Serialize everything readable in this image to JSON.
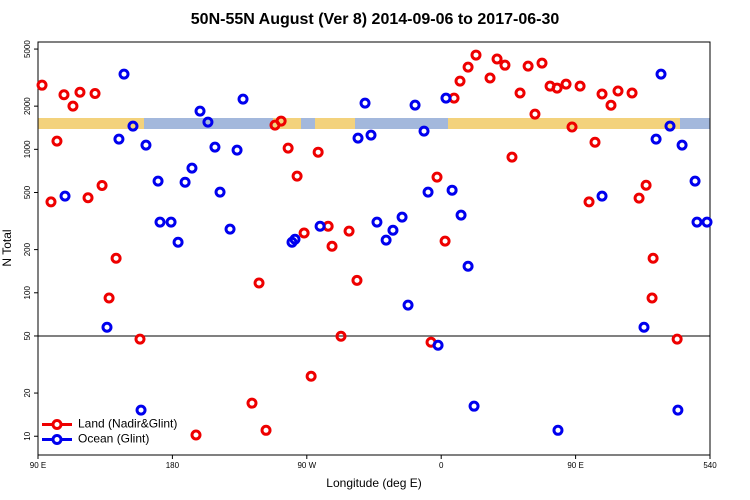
{
  "chart_data": {
    "type": "scatter",
    "title": "50N-55N August (Ver 8)   2014-09-06 to 2017-06-30",
    "x_label": "Longitude (deg E)",
    "y_label": "N Total",
    "ylog": true,
    "xlim": [
      90,
      540
    ],
    "ylim": [
      7.4,
      5600
    ],
    "xticks": [
      {
        "value": 90,
        "label": "90 E"
      },
      180,
      {
        "value": 270,
        "label": "90 W"
      },
      {
        "value": 360,
        "label": "0"
      },
      {
        "value": 450,
        "label": "90 E"
      },
      540
    ],
    "yticks": [
      10,
      20,
      50,
      100,
      200,
      500,
      1000,
      2000,
      5000
    ],
    "hline": 50,
    "legend": "bottomleft",
    "series": [
      {
        "name": "Land (Nadir&Glint)",
        "color": "#ee0000",
        "x": [
          92.7,
          98.7,
          102.7,
          107.4,
          113.4,
          118.1,
          123.5,
          128.2,
          132.9,
          137.6,
          142.3,
          158.3,
          195.8,
          233.3,
          238.0,
          242.7,
          248.7,
          252.8,
          257.5,
          263.5,
          268.2,
          272.9,
          277.6,
          284.3,
          286.9,
          292.9,
          298.3,
          303.6,
          353.2,
          357.2,
          362.6,
          368.6,
          372.6,
          378.0,
          383.3,
          392.7,
          397.4,
          402.7,
          407.4,
          412.8,
          418.2,
          422.8,
          427.5,
          432.9,
          437.6,
          443.6,
          447.6,
          453.0,
          459.0,
          463.0,
          467.7,
          473.7,
          478.4,
          487.8,
          492.5,
          497.2,
          501.2,
          501.9,
          518.0
        ],
        "values": [
          2800,
          430,
          1140,
          2400,
          2000,
          2500,
          460,
          2450,
          560,
          92,
          174,
          47.5,
          10.2,
          17,
          117,
          11,
          1475,
          1574,
          1019,
          650,
          261,
          26.2,
          955,
          291,
          211,
          49.8,
          269,
          122,
          45.2,
          640,
          229,
          2275,
          2990,
          3740,
          4540,
          3140,
          4260,
          3860,
          883,
          2470,
          3800,
          1760,
          3990,
          2760,
          2670,
          2850,
          1430,
          2760,
          430,
          1120,
          2430,
          2030,
          2550,
          2470,
          457,
          562,
          92,
          174,
          47.5
        ]
      },
      {
        "name": "Ocean (Glint)",
        "color": "#0000ee",
        "x": [
          108.1,
          136.2,
          144.2,
          147.6,
          153.6,
          159.0,
          162.3,
          170.4,
          171.7,
          179.1,
          183.8,
          188.5,
          193.1,
          198.5,
          203.8,
          208.5,
          211.9,
          218.6,
          223.3,
          227.3,
          260.1,
          262.1,
          278.9,
          304.3,
          309.0,
          313.0,
          317.0,
          323.1,
          327.7,
          333.8,
          337.8,
          342.5,
          348.5,
          351.2,
          357.9,
          363.2,
          367.3,
          373.3,
          378.0,
          382.0,
          438.2,
          467.7,
          495.8,
          503.9,
          507.2,
          513.2,
          518.5,
          521.3,
          530.0,
          531.3,
          538.0
        ],
        "values": [
          472,
          57.5,
          1178,
          3345,
          1452,
          15.2,
          1070,
          600,
          311,
          311,
          225,
          590,
          740,
          1847,
          1548,
          1036,
          503,
          278,
          987,
          2239,
          225,
          236,
          291,
          1197,
          2100,
          1256,
          311,
          233,
          273,
          337,
          82,
          2032,
          1339,
          503,
          43.1,
          2275,
          519,
          348,
          153,
          16.2,
          11,
          472,
          57.5,
          1178,
          3345,
          1452,
          15.2,
          1070,
          600,
          311,
          311
        ]
      }
    ]
  }
}
